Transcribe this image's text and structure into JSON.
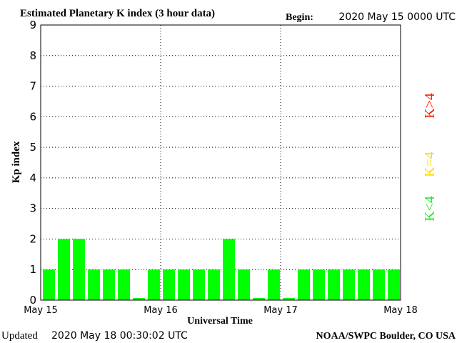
{
  "header": {
    "title": "Estimated Planetary K index (3 hour data)",
    "begin_label": "Begin:",
    "begin_value": "2020 May 15 0000 UTC"
  },
  "footer": {
    "updated_label": "Updated",
    "updated_value": "2020 May 18 00:30:02 UTC",
    "source": "NOAA/SWPC Boulder, CO USA"
  },
  "legend": [
    {
      "text": "K>4",
      "color": "#ff2000"
    },
    {
      "text": "K=4",
      "color": "#ffd800"
    },
    {
      "text": "K<4",
      "color": "#22ee22"
    }
  ],
  "chart_data": {
    "type": "bar",
    "title": "Estimated Planetary K index (3 hour data)",
    "xlabel": "Universal Time",
    "ylabel": "Kp index",
    "ylim": [
      0,
      9
    ],
    "yticks": [
      0,
      1,
      2,
      3,
      4,
      5,
      6,
      7,
      8,
      9
    ],
    "xticks": [
      "May 15",
      "May 16",
      "May 17",
      "May 18"
    ],
    "grid": "dotted",
    "bar_color": "#00ff00",
    "values": [
      1,
      2,
      2,
      1,
      1,
      1,
      0,
      1,
      1,
      1,
      1,
      1,
      2,
      1,
      0,
      1,
      0,
      1,
      1,
      1,
      1,
      1,
      1,
      1
    ]
  }
}
